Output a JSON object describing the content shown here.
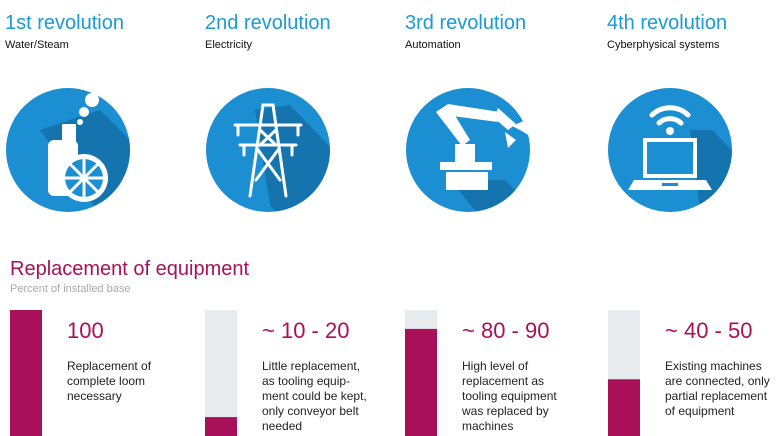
{
  "revolutions": [
    {
      "title": "1st revolution",
      "subtitle": "Water/Steam"
    },
    {
      "title": "2nd revolution",
      "subtitle": "Electricity"
    },
    {
      "title": "3rd revolution",
      "subtitle": "Automation"
    },
    {
      "title": "4th revolution",
      "subtitle": "Cyberphysical systems"
    }
  ],
  "replacement": {
    "title": "Replacement of equipment",
    "subtitle": "Percent of installed base",
    "items": [
      {
        "value": "100",
        "level": 100,
        "description": [
          "Replacement of",
          "complete loom",
          "necessary"
        ]
      },
      {
        "value": "~ 10 - 20",
        "level": 15,
        "description": [
          "Little replacement,",
          "as tooling equip-",
          "ment could be kept,",
          "only conveyor belt",
          "needed"
        ]
      },
      {
        "value": "~ 80 - 90",
        "level": 85,
        "description": [
          "High level of",
          "replacement as",
          "tooling equipment",
          "was replaced by",
          "machines"
        ]
      },
      {
        "value": "~ 40 - 50",
        "level": 45,
        "description": [
          "Existing machines",
          "are connected, only",
          "partial replacement",
          "of equipment"
        ]
      }
    ]
  }
}
